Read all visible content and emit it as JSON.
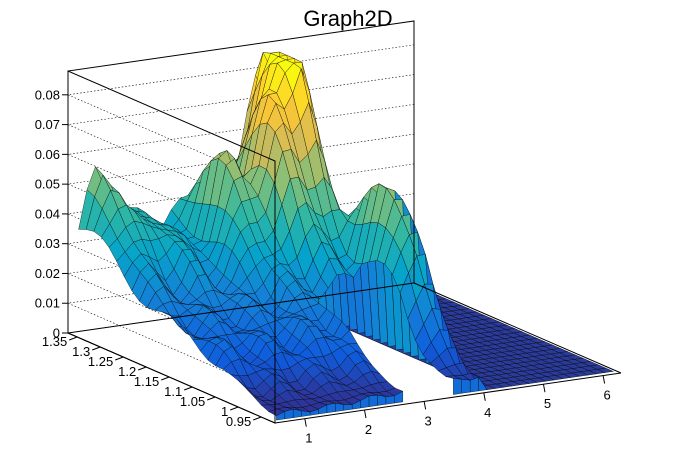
{
  "chart_data": {
    "type": "surface3d",
    "title": "Graph2D",
    "xlabel": "",
    "ylabel": "",
    "zlabel": "",
    "xlim": [
      0.5,
      6.3
    ],
    "ylim": [
      0.92,
      1.37
    ],
    "zlim": [
      0,
      0.088
    ],
    "x_ticks": [
      "1",
      "2",
      "3",
      "4",
      "5",
      "6"
    ],
    "y_ticks": [
      "0.95",
      "1",
      "1.05",
      "1.1",
      "1.15",
      "1.2",
      "1.25",
      "1.3",
      "1.35"
    ],
    "z_ticks": [
      "0",
      "0.01",
      "0.02",
      "0.03",
      "0.04",
      "0.05",
      "0.06",
      "0.07",
      "0.08"
    ],
    "palette": [
      "#352a87",
      "#0f5cdd",
      "#1481d6",
      "#06a4ca",
      "#2eb7a4",
      "#87bf77",
      "#d1bb59",
      "#fec832",
      "#f9fb0e"
    ],
    "grid": true,
    "peaks": [
      {
        "x": 0.9,
        "y": 1.34,
        "z": 0.045
      },
      {
        "x": 1.5,
        "y": 1.3,
        "z": 0.035
      },
      {
        "x": 2.5,
        "y": 1.28,
        "z": 0.048
      },
      {
        "x": 3.1,
        "y": 1.26,
        "z": 0.063
      },
      {
        "x": 3.6,
        "y": 1.3,
        "z": 0.086
      },
      {
        "x": 3.9,
        "y": 1.1,
        "z": 0.052
      }
    ],
    "hole": {
      "x": [
        2.85,
        3.55
      ],
      "y": [
        0.92,
        1.12
      ]
    }
  }
}
